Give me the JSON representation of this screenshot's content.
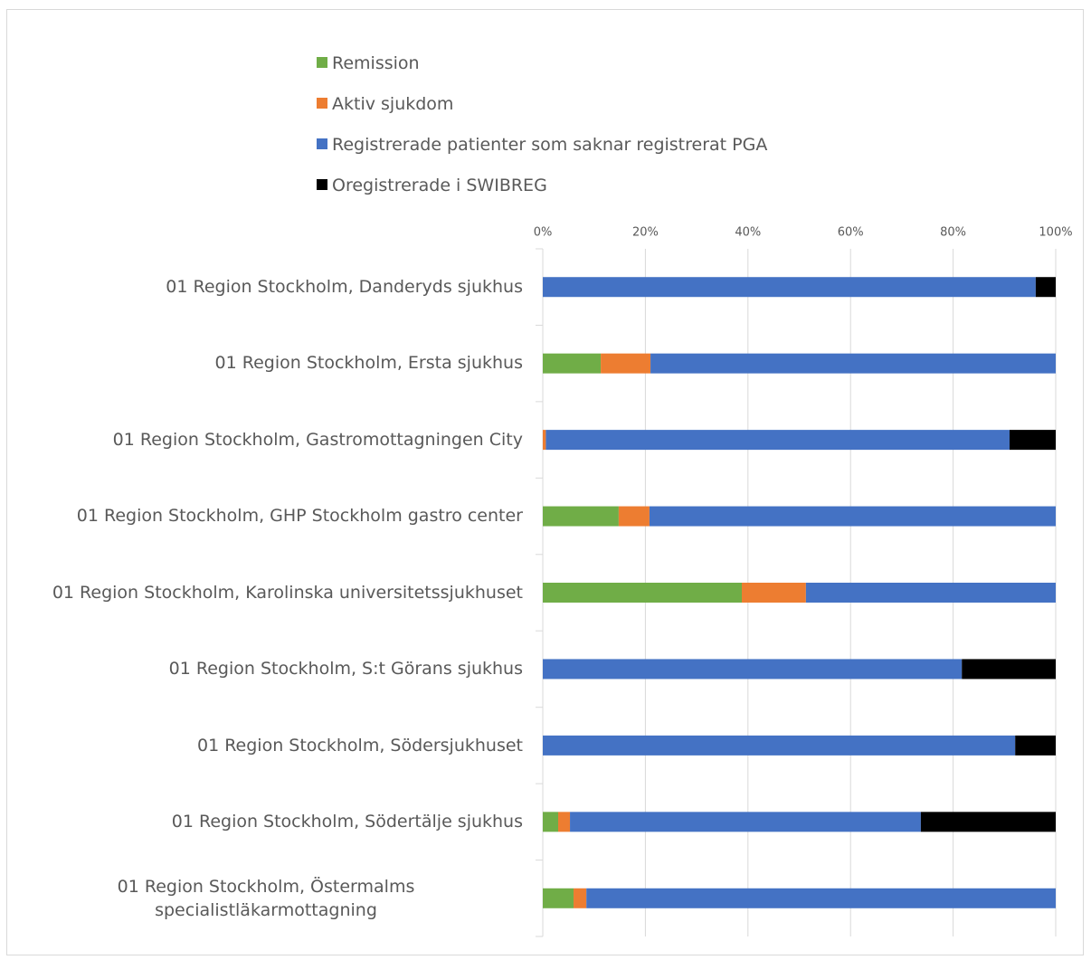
{
  "chart_data": {
    "type": "stacked-bar-horizontal",
    "categories": [
      "01 Region Stockholm, Danderyds sjukhus",
      "01 Region Stockholm, Ersta sjukhus",
      "01 Region Stockholm, Gastromottagningen City",
      "01 Region Stockholm, GHP Stockholm gastro center",
      "01 Region Stockholm, Karolinska universitetssjukhuset",
      "01 Region Stockholm, S:t Görans sjukhus",
      "01 Region Stockholm, Södersjukhuset",
      "01 Region Stockholm, Södertälje sjukhus",
      "01 Region Stockholm, Östermalms specialistläkarmottagning"
    ],
    "series": [
      {
        "name": "Remission",
        "color": "#70ad47",
        "values": [
          0,
          11.3,
          0,
          14.8,
          38.8,
          0,
          0,
          3.0,
          6.0
        ]
      },
      {
        "name": "Aktiv sjukdom",
        "color": "#ed7d31",
        "values": [
          0,
          9.7,
          0.6,
          6.0,
          12.5,
          0,
          0,
          2.3,
          2.5
        ]
      },
      {
        "name": "Registrerade patienter som saknar registrerat PGA",
        "color": "#4472c4",
        "values": [
          96.1,
          79.0,
          90.4,
          79.2,
          48.7,
          81.7,
          92.1,
          68.4,
          91.5
        ]
      },
      {
        "name": "Oregistrerade i SWIBREG",
        "color": "#000000",
        "values": [
          3.9,
          0,
          9.0,
          0,
          0,
          18.3,
          7.9,
          26.3,
          0
        ]
      }
    ],
    "xlim": [
      0,
      100
    ],
    "xticks": [
      {
        "value": 0,
        "label": "0%"
      },
      {
        "value": 20,
        "label": "20%"
      },
      {
        "value": 40,
        "label": "40%"
      },
      {
        "value": 60,
        "label": "60%"
      },
      {
        "value": 80,
        "label": "80%"
      },
      {
        "value": 100,
        "label": "100%"
      }
    ],
    "grid": true,
    "legend": "top"
  }
}
